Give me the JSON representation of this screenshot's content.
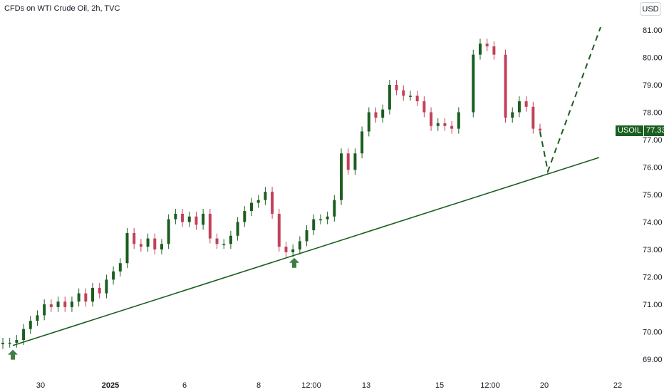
{
  "header": {
    "title": "CFDs on WTI Crude Oil, 2h, TVC"
  },
  "toolbar": {
    "currency": "USD"
  },
  "price_tag": {
    "symbol": "USOIL",
    "value": "77.33"
  },
  "colors": {
    "up": "#1b5e20",
    "down": "#c2415a",
    "trend": "#1b5e20",
    "arrow": "#3e7d46",
    "axis_text": "#131722"
  },
  "chart_data": {
    "type": "candlestick",
    "title": "CFDs on WTI Crude Oil, 2h, TVC",
    "ylim": [
      68.8,
      81.5
    ],
    "y_ticks": [
      "69.00",
      "70.00",
      "71.00",
      "72.00",
      "73.00",
      "74.00",
      "75.00",
      "76.00",
      "77.00",
      "78.00",
      "79.00",
      "80.00",
      "81.00"
    ],
    "x_ticks": [
      {
        "label": "30",
        "bold": false
      },
      {
        "label": "2025",
        "bold": true
      },
      {
        "label": "6",
        "bold": false
      },
      {
        "label": "8",
        "bold": false
      },
      {
        "label": "12:00",
        "bold": false
      },
      {
        "label": "13",
        "bold": false
      },
      {
        "label": "15",
        "bold": false
      },
      {
        "label": "12:00",
        "bold": false
      },
      {
        "label": "20",
        "bold": false
      },
      {
        "label": "22",
        "bold": false
      }
    ],
    "close_path": [
      69.6,
      69.6,
      69.7,
      70.1,
      70.4,
      70.6,
      71.0,
      70.9,
      71.1,
      70.9,
      71.1,
      71.4,
      71.1,
      71.6,
      71.4,
      71.9,
      72.2,
      72.5,
      73.6,
      73.2,
      73.1,
      73.4,
      73.0,
      73.2,
      74.1,
      74.3,
      74.0,
      74.2,
      73.9,
      74.3,
      73.4,
      73.2,
      73.2,
      73.5,
      74.0,
      74.4,
      74.7,
      74.8,
      75.1,
      74.3,
      73.1,
      72.9,
      73.0,
      73.3,
      73.7,
      74.1,
      74.1,
      74.2,
      74.8,
      76.5,
      75.9,
      76.5,
      77.3,
      78.0,
      77.8,
      78.1,
      79.0,
      78.8,
      78.6,
      78.6,
      78.4,
      78.0,
      77.5,
      77.6,
      77.5,
      77.4,
      78.0,
      80.1,
      80.5,
      80.4,
      80.1,
      77.8,
      78.0,
      78.4,
      78.2,
      77.4,
      77.33
    ],
    "events": [
      {
        "label": "support-touch",
        "date": "Dec 27",
        "price": 69.45
      },
      {
        "label": "support-touch",
        "date": "Jan 10 12:00",
        "price": 72.8
      }
    ],
    "trendline": {
      "from": [
        69.5,
        "Dec 27"
      ],
      "to": [
        76.35,
        "Jan 21"
      ]
    },
    "projection": [
      [
        77.3,
        "Jan 19"
      ],
      [
        75.85,
        "Jan 20"
      ],
      [
        81.1,
        "Jan 21 12:00"
      ]
    ]
  }
}
